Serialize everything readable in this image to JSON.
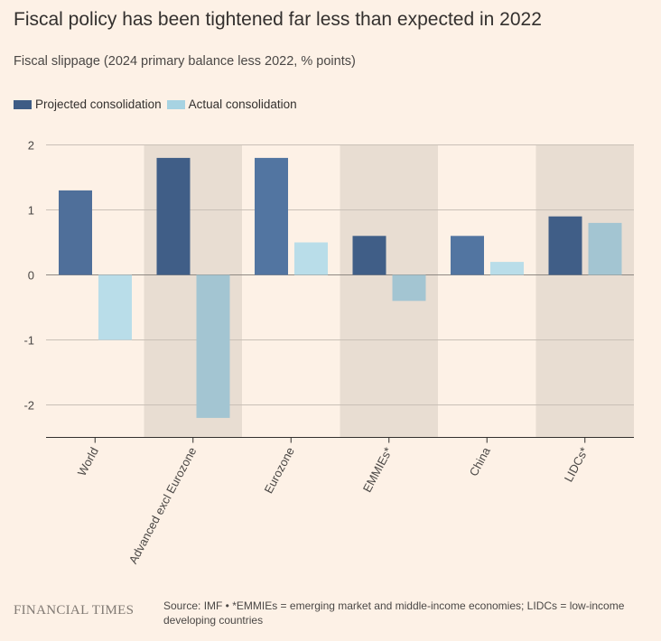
{
  "title": "Fiscal policy has been tightened far less than expected in 2022",
  "subtitle": "Fiscal slippage (2024 primary balance less 2022, % points)",
  "colors": {
    "background": "#fdf1e6",
    "projected": "#4a6d97",
    "projected_alt": "#3e5c85",
    "actual": "#b8dce7",
    "actual_alt": "#a7c7d4",
    "shade": "#e8ddd2"
  },
  "chart_data": {
    "type": "bar",
    "categories": [
      "World",
      "Advanced excl Eurozone",
      "Eurozone",
      "EMMIEs*",
      "China",
      "LIDCs*"
    ],
    "series": [
      {
        "name": "Projected consolidation",
        "values": [
          1.3,
          1.8,
          1.8,
          0.6,
          0.6,
          0.9
        ]
      },
      {
        "name": "Actual consolidation",
        "values": [
          -1.0,
          -2.2,
          0.5,
          -0.4,
          0.2,
          0.8
        ]
      }
    ],
    "yticks": [
      2,
      1,
      0,
      -1,
      -2
    ],
    "ylim": [
      -2.5,
      2
    ],
    "shaded_categories": [
      1,
      3,
      5
    ],
    "legend_position": "top-left",
    "grid": true
  },
  "footer": {
    "logo": "FINANCIAL TIMES",
    "source": "Source: IMF • *EMMIEs = emerging market and middle-income economies; LIDCs = low-income developing countries"
  }
}
